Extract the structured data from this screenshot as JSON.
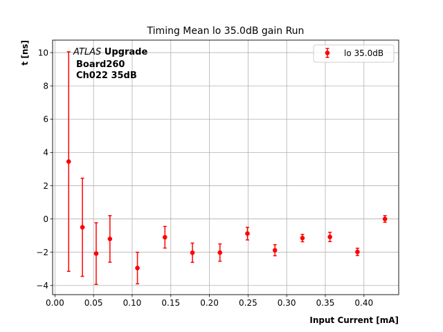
{
  "chart_data": {
    "type": "scatter",
    "title": "Timing Mean lo 35.0dB gain Run",
    "xlabel": "Input Current [mA]",
    "ylabel": "t [ns]",
    "xlim": [
      -0.003,
      0.445
    ],
    "ylim": [
      -4.55,
      10.75
    ],
    "xticks": [
      0.0,
      0.05,
      0.1,
      0.15,
      0.2,
      0.25,
      0.3,
      0.35,
      0.4
    ],
    "xtick_labels": [
      "0.00",
      "0.05",
      "0.10",
      "0.15",
      "0.20",
      "0.25",
      "0.30",
      "0.35",
      "0.40"
    ],
    "yticks": [
      -4,
      -2,
      0,
      2,
      4,
      6,
      8,
      10
    ],
    "ytick_labels": [
      "−4",
      "−2",
      "0",
      "2",
      "4",
      "6",
      "8",
      "10"
    ],
    "grid": true,
    "legend_position": "top-right",
    "color": "#ff0000",
    "annotation": {
      "line1_italic": "ATLAS",
      "line1_bold": " Upgrade",
      "line2": "Board260",
      "line3": "Ch022 35dB"
    },
    "series": [
      {
        "name": "lo 35.0dB",
        "x": [
          0.0178,
          0.0356,
          0.0534,
          0.0712,
          0.1068,
          0.1424,
          0.178,
          0.2136,
          0.2492,
          0.2848,
          0.3204,
          0.356,
          0.3916,
          0.4272
        ],
        "y": [
          3.45,
          -0.5,
          -2.08,
          -1.2,
          -2.95,
          -1.1,
          -2.03,
          -2.02,
          -0.88,
          -1.88,
          -1.15,
          -1.08,
          -1.98,
          0.0
        ],
        "yerr": [
          6.6,
          2.95,
          1.85,
          1.4,
          0.95,
          0.65,
          0.58,
          0.52,
          0.38,
          0.33,
          0.22,
          0.28,
          0.22,
          0.2
        ]
      }
    ]
  }
}
